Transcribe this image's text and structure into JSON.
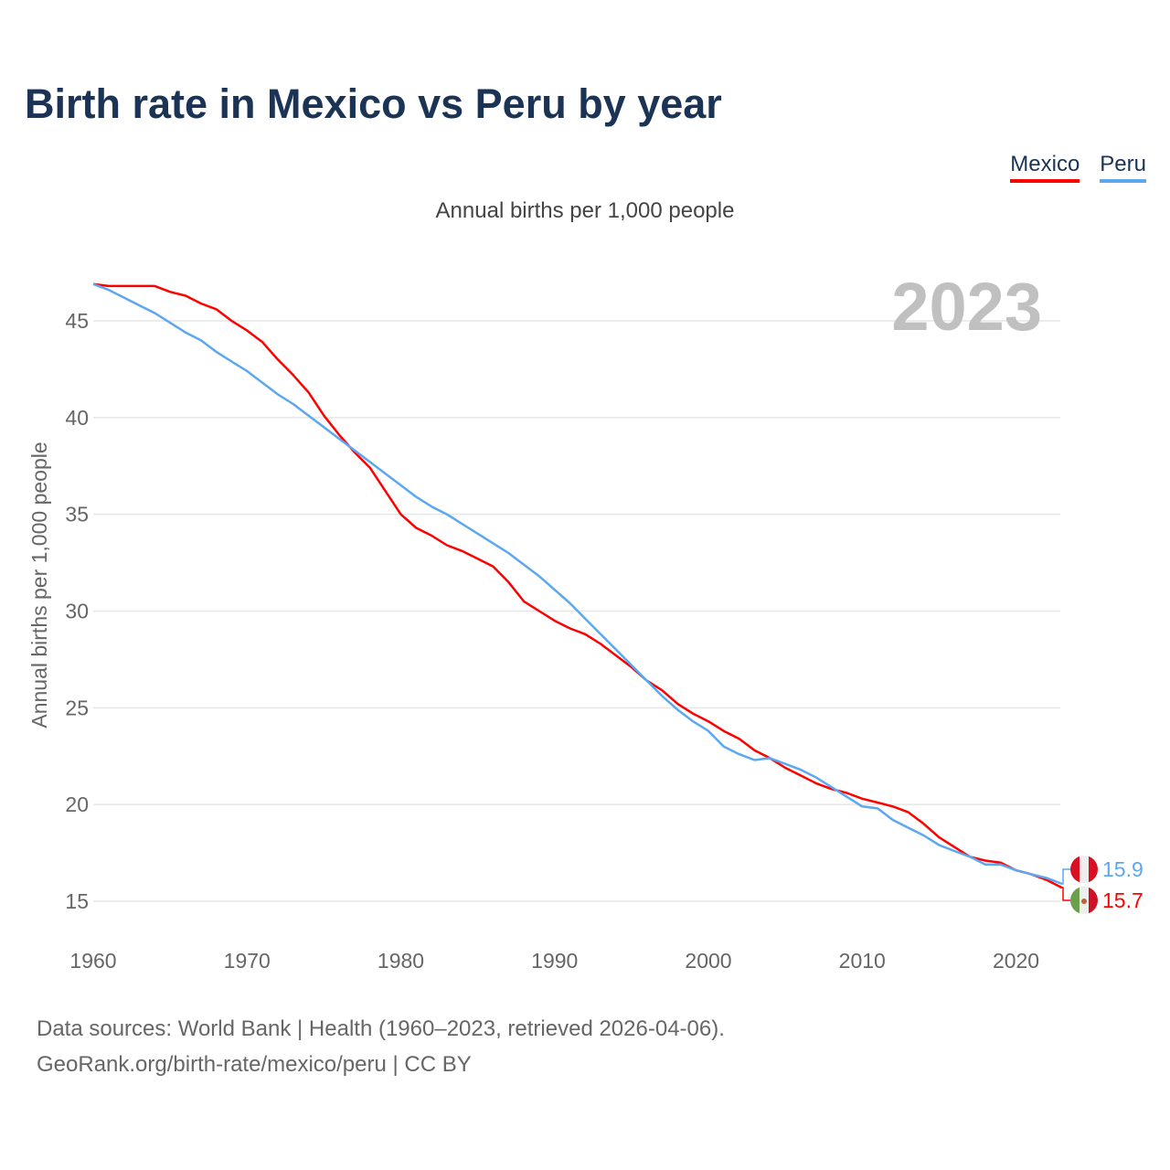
{
  "title": "Birth rate in Mexico vs Peru by year",
  "subtitle": "Annual births per 1,000 people",
  "legend": [
    {
      "name": "Mexico",
      "color": "#ff0000"
    },
    {
      "name": "Peru",
      "color": "#5ca8f0"
    }
  ],
  "footer": {
    "line1": "Data sources: World Bank | Health (1960–2023, retrieved 2026-04-06).",
    "line2": "GeoRank.org/birth-rate/mexico/peru | CC BY"
  },
  "chart_data": {
    "type": "line",
    "title": "Birth rate in Mexico vs Peru by year",
    "ylabel": "Annual births per 1,000 people",
    "xlabel": "",
    "year_label": "2023",
    "xlim": [
      1960,
      2023
    ],
    "ylim": [
      13,
      48
    ],
    "x_ticks": [
      "1960",
      "1970",
      "1980",
      "1990",
      "2000",
      "2010",
      "2020"
    ],
    "y_ticks": [
      "15",
      "20",
      "25",
      "30",
      "35",
      "40",
      "45"
    ],
    "x": [
      1960,
      1961,
      1962,
      1963,
      1964,
      1965,
      1966,
      1967,
      1968,
      1969,
      1970,
      1971,
      1972,
      1973,
      1974,
      1975,
      1976,
      1977,
      1978,
      1979,
      1980,
      1981,
      1982,
      1983,
      1984,
      1985,
      1986,
      1987,
      1988,
      1989,
      1990,
      1991,
      1992,
      1993,
      1994,
      1995,
      1996,
      1997,
      1998,
      1999,
      2000,
      2001,
      2002,
      2003,
      2004,
      2005,
      2006,
      2007,
      2008,
      2009,
      2010,
      2011,
      2012,
      2013,
      2014,
      2015,
      2016,
      2017,
      2018,
      2019,
      2020,
      2021,
      2022,
      2023
    ],
    "series": [
      {
        "name": "Mexico",
        "color": "#ff0000",
        "end_label": "15.7",
        "values": [
          46.9,
          46.8,
          46.8,
          46.8,
          46.8,
          46.5,
          46.3,
          45.9,
          45.6,
          45.0,
          44.5,
          43.9,
          43.0,
          42.2,
          41.3,
          40.1,
          39.1,
          38.2,
          37.4,
          36.2,
          35.0,
          34.3,
          33.9,
          33.4,
          33.1,
          32.7,
          32.3,
          31.5,
          30.5,
          30.0,
          29.5,
          29.1,
          28.8,
          28.3,
          27.7,
          27.1,
          26.4,
          25.9,
          25.2,
          24.7,
          24.3,
          23.8,
          23.4,
          22.8,
          22.4,
          21.9,
          21.5,
          21.1,
          20.8,
          20.6,
          20.3,
          20.1,
          19.9,
          19.6,
          19.0,
          18.3,
          17.8,
          17.3,
          17.1,
          17.0,
          16.6,
          16.4,
          16.1,
          15.7
        ]
      },
      {
        "name": "Peru",
        "color": "#5ca8f0",
        "end_label": "15.9",
        "values": [
          46.9,
          46.6,
          46.2,
          45.8,
          45.4,
          44.9,
          44.4,
          44.0,
          43.4,
          42.9,
          42.4,
          41.8,
          41.2,
          40.7,
          40.1,
          39.5,
          38.9,
          38.3,
          37.7,
          37.1,
          36.5,
          35.9,
          35.4,
          35.0,
          34.5,
          34.0,
          33.5,
          33.0,
          32.4,
          31.8,
          31.1,
          30.4,
          29.6,
          28.8,
          28.0,
          27.2,
          26.4,
          25.6,
          24.9,
          24.3,
          23.8,
          23.0,
          22.6,
          22.3,
          22.4,
          22.1,
          21.8,
          21.4,
          20.9,
          20.4,
          19.9,
          19.8,
          19.2,
          18.8,
          18.4,
          17.9,
          17.6,
          17.3,
          16.9,
          16.9,
          16.6,
          16.4,
          16.2,
          15.9
        ]
      }
    ]
  }
}
